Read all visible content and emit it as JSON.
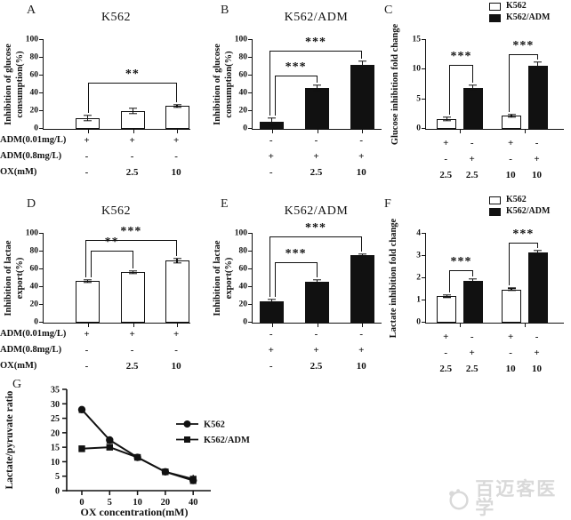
{
  "figure": {
    "background": "#ffffff",
    "ink": "#111111"
  },
  "watermark": {
    "text": "百迈客医学",
    "icon": "biomarker-logo",
    "color": "#d9d9d9"
  },
  "chart_data": [
    {
      "id": "A",
      "letter": "A",
      "type": "bar",
      "title": "K562",
      "ylabel": "Inhibition of glucose\nconsumption(%)",
      "ylim": [
        0,
        100
      ],
      "yticks": [
        0,
        20,
        40,
        60,
        80,
        100
      ],
      "bars": [
        {
          "value": 12,
          "err": 3,
          "fill": "white"
        },
        {
          "value": 20,
          "err": 3,
          "fill": "white"
        },
        {
          "value": 26,
          "err": 1.5,
          "fill": "white"
        }
      ],
      "sig": [
        {
          "from": 0,
          "to": 2,
          "label": "**",
          "y": 52
        }
      ],
      "rows": [
        {
          "label": "ADM(0.01mg/L)",
          "values": [
            "+",
            "+",
            "+"
          ]
        },
        {
          "label": "ADM(0.8mg/L)",
          "values": [
            "-",
            "-",
            "-"
          ]
        },
        {
          "label": "OX(mM)",
          "values": [
            "-",
            "2.5",
            "10"
          ]
        }
      ]
    },
    {
      "id": "B",
      "letter": "B",
      "type": "bar",
      "title": "K562/ADM",
      "ylabel": "Inhibition of glucose\nconsumption(%)",
      "ylim": [
        0,
        100
      ],
      "yticks": [
        0,
        20,
        40,
        60,
        80,
        100
      ],
      "bars": [
        {
          "value": 8,
          "err": 4,
          "fill": "black"
        },
        {
          "value": 46,
          "err": 3,
          "fill": "black"
        },
        {
          "value": 72,
          "err": 4,
          "fill": "black"
        }
      ],
      "sig": [
        {
          "from": 0,
          "to": 1,
          "label": "***",
          "y": 60
        },
        {
          "from": 0,
          "to": 2,
          "label": "***",
          "y": 88
        }
      ],
      "rows": [
        {
          "values": [
            "-",
            "-",
            "-"
          ]
        },
        {
          "values": [
            "+",
            "+",
            "+"
          ]
        },
        {
          "values": [
            "-",
            "2.5",
            "10"
          ]
        }
      ]
    },
    {
      "id": "C",
      "letter": "C",
      "type": "grouped-bar",
      "legend": [
        {
          "label": "K562",
          "fill": "white"
        },
        {
          "label": "K562/ADM",
          "fill": "black"
        }
      ],
      "ylabel": "Glucose inhibition fold change",
      "ylim": [
        0,
        15
      ],
      "yticks": [
        0,
        5,
        10,
        15
      ],
      "bars": [
        {
          "value": 1.7,
          "err": 0.3,
          "fill": "white"
        },
        {
          "value": 6.9,
          "err": 0.5,
          "fill": "black"
        },
        {
          "value": 2.2,
          "err": 0.2,
          "fill": "white"
        },
        {
          "value": 10.7,
          "err": 0.6,
          "fill": "black"
        }
      ],
      "sig": [
        {
          "from": 0,
          "to": 1,
          "label": "***",
          "y": 10.8
        },
        {
          "from": 2,
          "to": 3,
          "label": "***",
          "y": 12.6
        }
      ],
      "rows": [
        {
          "values": [
            "+",
            "-",
            "+",
            "-"
          ]
        },
        {
          "values": [
            "-",
            "+",
            "-",
            "+"
          ]
        },
        {
          "values": [
            "2.5",
            "2.5",
            "10",
            "10"
          ]
        }
      ]
    },
    {
      "id": "D",
      "letter": "D",
      "type": "bar",
      "title": "K562",
      "ylabel": "Inhibition of lactae\nexport(%)",
      "ylim": [
        0,
        100
      ],
      "yticks": [
        0,
        20,
        40,
        60,
        80,
        100
      ],
      "bars": [
        {
          "value": 47,
          "err": 1.5,
          "fill": "white"
        },
        {
          "value": 57,
          "err": 1.5,
          "fill": "white"
        },
        {
          "value": 70,
          "err": 2.5,
          "fill": "white"
        }
      ],
      "sig": [
        {
          "from": 0,
          "to": 1,
          "label": "**",
          "y": 81
        },
        {
          "from": 0,
          "to": 2,
          "label": "***",
          "y": 93
        }
      ],
      "rows": [
        {
          "label": "ADM(0.01mg/L)",
          "values": [
            "+",
            "+",
            "+"
          ]
        },
        {
          "label": "ADM(0.8mg/L)",
          "values": [
            "-",
            "-",
            "-"
          ]
        },
        {
          "label": "OX(mM)",
          "values": [
            "-",
            "2.5",
            "10"
          ]
        }
      ]
    },
    {
      "id": "E",
      "letter": "E",
      "type": "bar",
      "title": "K562/ADM",
      "ylabel": "Inhibition of lactae\nexport(%)",
      "ylim": [
        0,
        100
      ],
      "yticks": [
        0,
        20,
        40,
        60,
        80,
        100
      ],
      "bars": [
        {
          "value": 24,
          "err": 2,
          "fill": "black"
        },
        {
          "value": 46,
          "err": 2,
          "fill": "black"
        },
        {
          "value": 76,
          "err": 1.5,
          "fill": "black"
        }
      ],
      "sig": [
        {
          "from": 0,
          "to": 1,
          "label": "***",
          "y": 68
        },
        {
          "from": 0,
          "to": 2,
          "label": "***",
          "y": 97
        }
      ],
      "rows": [
        {
          "values": [
            "-",
            "-",
            "-"
          ]
        },
        {
          "values": [
            "+",
            "+",
            "+"
          ]
        },
        {
          "values": [
            "-",
            "2.5",
            "10"
          ]
        }
      ]
    },
    {
      "id": "F",
      "letter": "F",
      "type": "grouped-bar",
      "legend": [
        {
          "label": "K562",
          "fill": "white"
        },
        {
          "label": "K562/ADM",
          "fill": "black"
        }
      ],
      "ylabel": "Lactate inhibition fold change",
      "ylim": [
        0,
        4
      ],
      "yticks": [
        0,
        1,
        2,
        3,
        4
      ],
      "bars": [
        {
          "value": 1.2,
          "err": 0.05,
          "fill": "white"
        },
        {
          "value": 1.9,
          "err": 0.06,
          "fill": "black"
        },
        {
          "value": 1.5,
          "err": 0.05,
          "fill": "white"
        },
        {
          "value": 3.15,
          "err": 0.1,
          "fill": "black"
        }
      ],
      "sig": [
        {
          "from": 0,
          "to": 1,
          "label": "***",
          "y": 2.35
        },
        {
          "from": 2,
          "to": 3,
          "label": "***",
          "y": 3.6
        }
      ],
      "rows": [
        {
          "values": [
            "+",
            "-",
            "+",
            "-"
          ]
        },
        {
          "values": [
            "-",
            "+",
            "-",
            "+"
          ]
        },
        {
          "values": [
            "2.5",
            "2.5",
            "10",
            "10"
          ]
        }
      ]
    },
    {
      "id": "G",
      "letter": "G",
      "type": "line",
      "ylabel": "Lactate/pyruvate ratio",
      "xlabel": "OX concentration(mM)",
      "ylim": [
        0,
        35
      ],
      "yticks": [
        0,
        5,
        10,
        15,
        20,
        25,
        30,
        35
      ],
      "categories": [
        "0",
        "5",
        "10",
        "20",
        "40"
      ],
      "legend_position": "middle-right",
      "grid": false,
      "series": [
        {
          "name": "K562",
          "marker": "circle",
          "values": [
            28,
            17.5,
            11.5,
            6.5,
            3.5
          ],
          "err": [
            1,
            1,
            0.5,
            0.5,
            1
          ]
        },
        {
          "name": "K562/ADM",
          "marker": "square",
          "values": [
            14.5,
            15,
            11.5,
            6.5,
            4
          ],
          "err": [
            1,
            0.8,
            0.5,
            0.5,
            1.5
          ]
        }
      ]
    }
  ]
}
